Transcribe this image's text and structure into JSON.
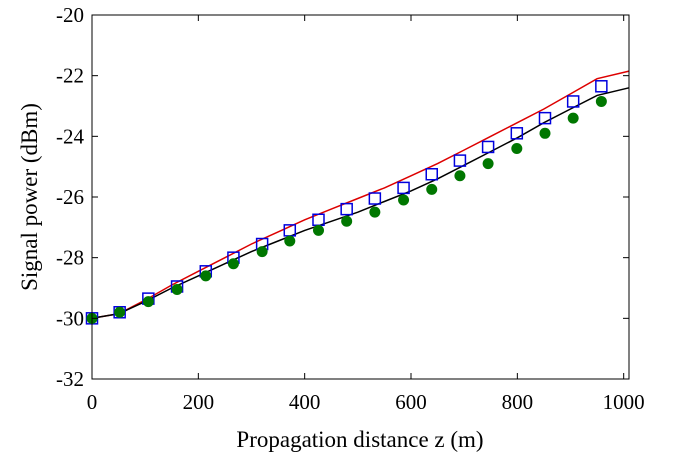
{
  "chart_data": {
    "type": "line",
    "xlabel": "Propagation distance z (m)",
    "ylabel": "Signal power (dBm)",
    "xlim": [
      0,
      1010
    ],
    "ylim": [
      -32,
      -20
    ],
    "xticks": [
      0,
      200,
      400,
      600,
      800,
      1000
    ],
    "yticks": [
      -32,
      -30,
      -28,
      -26,
      -24,
      -22,
      -20
    ],
    "grid": false,
    "legend": "none",
    "series": [
      {
        "kind": "line",
        "color": "#dd0000",
        "x": [
          0,
          50,
          100,
          150,
          200,
          250,
          300,
          350,
          400,
          450,
          500,
          550,
          600,
          650,
          700,
          750,
          800,
          850,
          900,
          950,
          1010
        ],
        "y": [
          -30.0,
          -29.85,
          -29.4,
          -28.9,
          -28.45,
          -28.0,
          -27.55,
          -27.15,
          -26.75,
          -26.4,
          -26.05,
          -25.7,
          -25.3,
          -24.9,
          -24.45,
          -24.0,
          -23.55,
          -23.1,
          -22.6,
          -22.1,
          -21.85
        ]
      },
      {
        "kind": "line",
        "color": "#000000",
        "x": [
          0,
          50,
          100,
          150,
          200,
          250,
          300,
          350,
          400,
          450,
          500,
          550,
          600,
          650,
          700,
          750,
          800,
          850,
          900,
          950,
          1010
        ],
        "y": [
          -30.0,
          -29.85,
          -29.45,
          -29.0,
          -28.6,
          -28.2,
          -27.8,
          -27.45,
          -27.1,
          -26.8,
          -26.5,
          -26.15,
          -25.8,
          -25.4,
          -24.95,
          -24.5,
          -24.05,
          -23.55,
          -23.1,
          -22.65,
          -22.4
        ]
      },
      {
        "kind": "markers",
        "marker": "open-square",
        "color": "#0000dd",
        "x": [
          0,
          52,
          106,
          160,
          214,
          266,
          320,
          372,
          426,
          479,
          532,
          586,
          639,
          692,
          745,
          799,
          852,
          905,
          958
        ],
        "y": [
          -30.0,
          -29.8,
          -29.35,
          -28.95,
          -28.45,
          -28.0,
          -27.55,
          -27.1,
          -26.75,
          -26.4,
          -26.05,
          -25.7,
          -25.25,
          -24.8,
          -24.35,
          -23.9,
          -23.4,
          -22.85,
          -22.35
        ]
      },
      {
        "kind": "markers",
        "marker": "filled-circle",
        "color": "#007700",
        "x": [
          0,
          52,
          106,
          160,
          214,
          266,
          320,
          372,
          426,
          479,
          532,
          586,
          639,
          692,
          745,
          799,
          852,
          905,
          958
        ],
        "y": [
          -30.0,
          -29.8,
          -29.45,
          -29.05,
          -28.6,
          -28.2,
          -27.8,
          -27.45,
          -27.1,
          -26.8,
          -26.5,
          -26.1,
          -25.75,
          -25.3,
          -24.9,
          -24.4,
          -23.9,
          -23.4,
          -22.85
        ]
      }
    ]
  }
}
